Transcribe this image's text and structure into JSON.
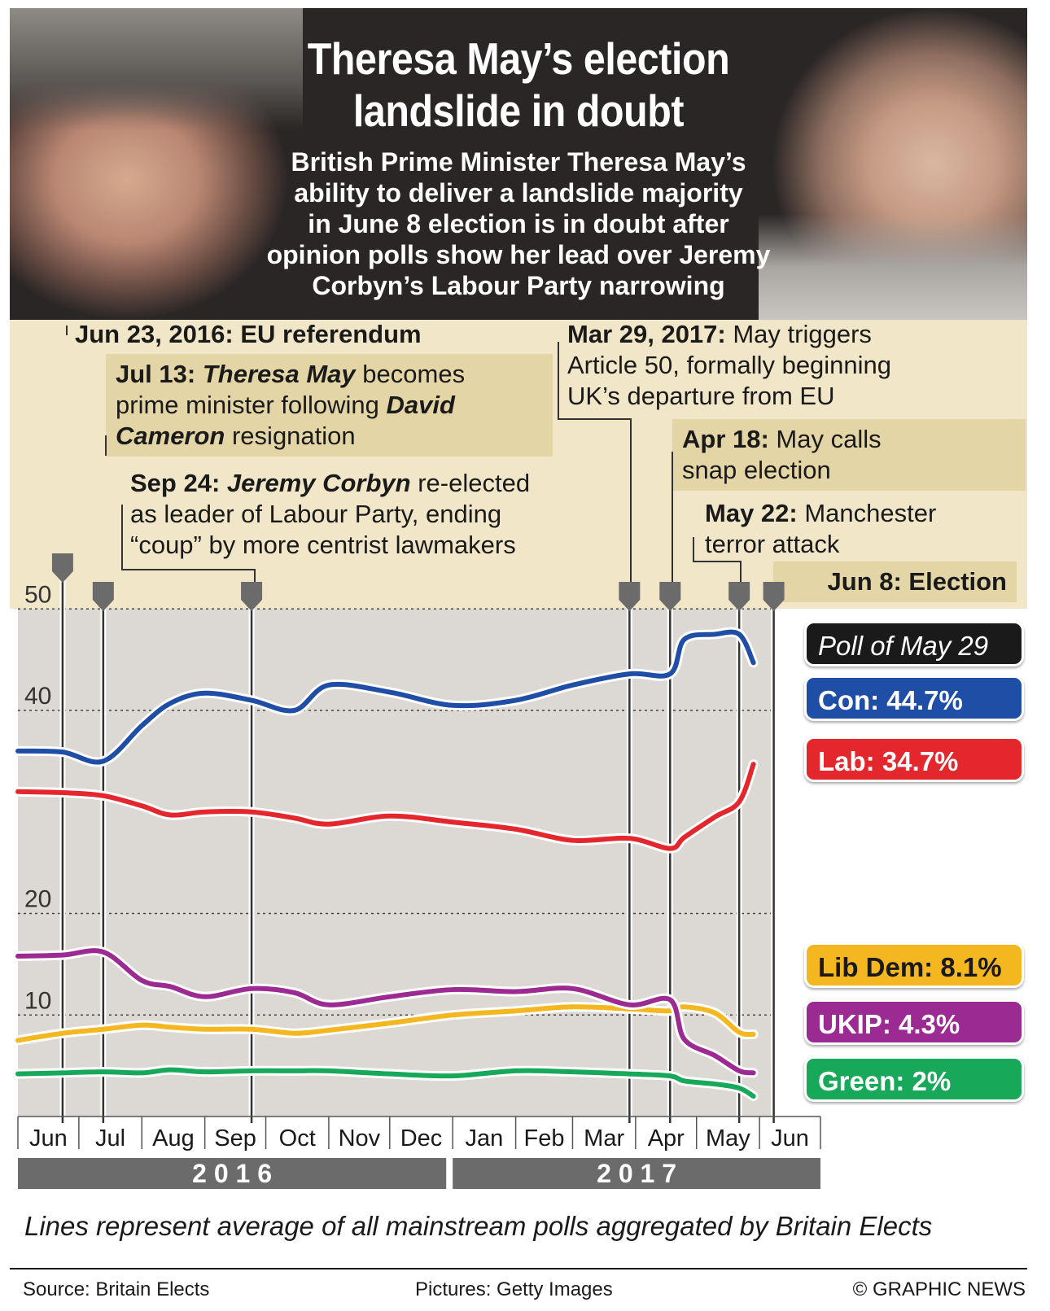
{
  "header": {
    "title_line1": "Theresa May’s election",
    "title_line2": "landslide in doubt",
    "subtitle_lines": [
      "British Prime Minister Theresa May’s",
      "ability to deliver a landslide majority",
      "in June 8 election is in doubt after",
      "opinion polls show her lead over Jeremy",
      "Corbyn’s Labour Party narrowing"
    ]
  },
  "events": {
    "eu_ref": {
      "date": "Jun 23, 2016:",
      "text": "EU referendum"
    },
    "may_pm": {
      "date": "Jul 13:",
      "name1": "Theresa May",
      "text1": " becomes",
      "line2": "prime minister following ",
      "name2": "David",
      "name3": "Cameron",
      "text3": " resignation"
    },
    "corbyn": {
      "date": "Sep 24:",
      "name": "Jeremy Corbyn",
      "text1": " re-elected",
      "line2": "as leader of Labour Party, ending",
      "line3": "“coup” by more centrist lawmakers"
    },
    "art50": {
      "date": "Mar 29, 2017:",
      "text1": " May triggers",
      "line2": "Article 50, formally beginning",
      "line3": "UK’s departure from EU"
    },
    "snap": {
      "date": "Apr 18:",
      "text1": " May calls",
      "line2": "snap election"
    },
    "manchester": {
      "date": "May 22:",
      "text1": " Manchester",
      "line2": "terror attack"
    },
    "election": {
      "label": "Jun 8: Election"
    }
  },
  "legend": {
    "poll_date": "Poll of May 29",
    "con": "Con: 44.7%",
    "lab": "Lab: 34.7%",
    "libdem": "Lib Dem: 8.1%",
    "ukip": "UKIP: 4.3%",
    "green": "Green: 2%"
  },
  "years": [
    "2 0 1 6",
    "2 0 1 7"
  ],
  "note": "Lines represent average of all mainstream polls aggregated by Britain Elects",
  "footer": {
    "source": "Source: Britain Elects",
    "pictures": "Pictures: Getty Images",
    "copyright": "© GRAPHIC NEWS"
  },
  "colors": {
    "con": "#1f4ea6",
    "lab": "#e4262d",
    "libdem": "#f5b720",
    "ukip": "#9b2a92",
    "green": "#17a85a",
    "plot_bg": "#dcd8d3",
    "year_bar": "#6b6b6b",
    "banner": "#f1e6c8",
    "box": "#e3d5a5"
  },
  "chart_data": {
    "type": "line",
    "ylim": [
      0,
      50
    ],
    "yticks": [
      10,
      20,
      40,
      50
    ],
    "x_months": [
      "Jun",
      "Jul",
      "Aug",
      "Sep",
      "Oct",
      "Nov",
      "Dec",
      "Jan",
      "Feb",
      "Mar",
      "Apr",
      "May",
      "Jun"
    ],
    "x": [
      "2016-06-01",
      "2016-06-23",
      "2016-07-13",
      "2016-08-01",
      "2016-08-15",
      "2016-09-01",
      "2016-09-24",
      "2016-10-15",
      "2016-11-01",
      "2016-12-01",
      "2017-01-01",
      "2017-02-01",
      "2017-03-01",
      "2017-03-29",
      "2017-04-18",
      "2017-04-25",
      "2017-05-10",
      "2017-05-22",
      "2017-05-29"
    ],
    "series": [
      {
        "name": "Con",
        "values": [
          36.0,
          35.9,
          35.0,
          38.5,
          40.7,
          41.7,
          41.0,
          40.0,
          42.5,
          41.8,
          40.5,
          41.0,
          42.5,
          43.6,
          43.6,
          47.0,
          47.5,
          47.5,
          44.7
        ]
      },
      {
        "name": "Lab",
        "values": [
          32.0,
          31.9,
          31.6,
          30.6,
          29.7,
          30.0,
          30.0,
          29.4,
          28.8,
          29.6,
          29.0,
          28.3,
          27.2,
          27.4,
          26.4,
          27.5,
          29.5,
          31.0,
          34.7
        ]
      },
      {
        "name": "Lib Dem",
        "values": [
          7.5,
          8.2,
          8.6,
          9.0,
          8.8,
          8.6,
          8.6,
          8.2,
          8.5,
          9.2,
          10.0,
          10.4,
          10.8,
          10.6,
          10.4,
          10.8,
          10.2,
          8.3,
          8.1
        ]
      },
      {
        "name": "UKIP",
        "values": [
          15.8,
          15.9,
          16.2,
          13.4,
          12.8,
          11.8,
          12.6,
          12.2,
          11.0,
          11.8,
          12.5,
          12.3,
          12.6,
          11.0,
          11.5,
          7.6,
          6.0,
          4.5,
          4.3
        ]
      },
      {
        "name": "Green",
        "values": [
          4.2,
          4.3,
          4.4,
          4.3,
          4.6,
          4.4,
          4.5,
          4.5,
          4.5,
          4.2,
          4.0,
          4.5,
          4.4,
          4.2,
          4.0,
          3.5,
          3.2,
          2.8,
          2.0
        ]
      }
    ],
    "events": [
      "2016-06-23",
      "2016-07-13",
      "2016-09-24",
      "2017-03-29",
      "2017-04-18",
      "2017-05-22",
      "2017-06-08"
    ]
  }
}
